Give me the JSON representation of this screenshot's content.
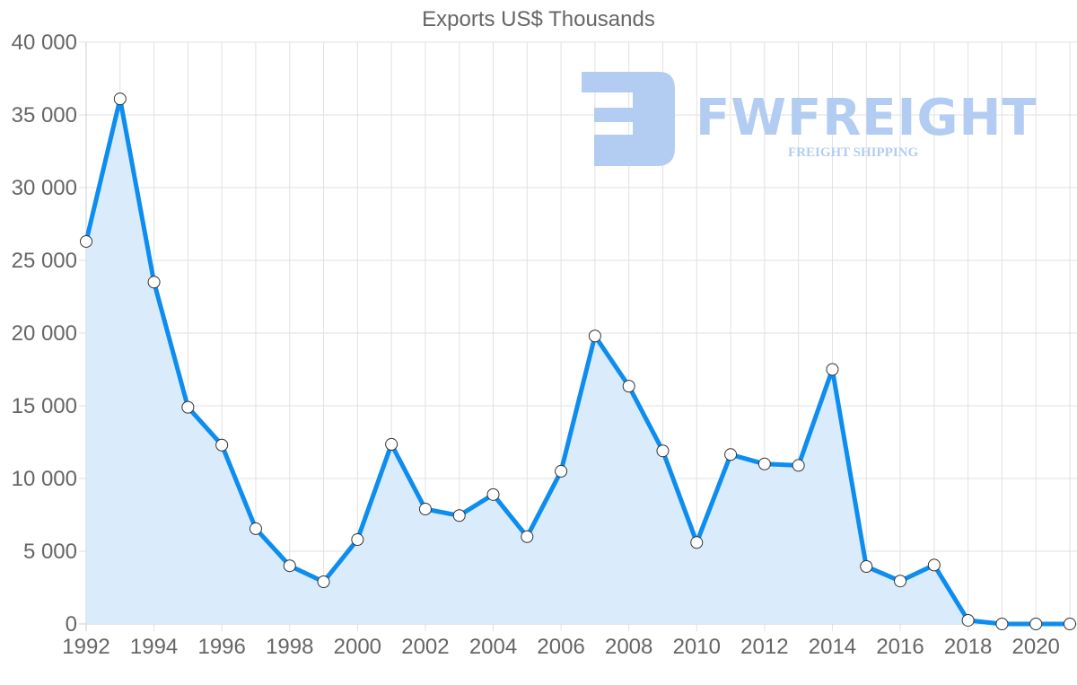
{
  "chart_data": {
    "type": "area",
    "title": "Exports US$ Thousands",
    "xlabel": "",
    "ylabel": "",
    "x": [
      1992,
      1993,
      1994,
      1995,
      1996,
      1997,
      1998,
      1999,
      2000,
      2001,
      2002,
      2003,
      2004,
      2005,
      2006,
      2007,
      2008,
      2009,
      2010,
      2011,
      2012,
      2013,
      2014,
      2015,
      2016,
      2017,
      2018,
      2019,
      2020,
      2021
    ],
    "series": [
      {
        "name": "Exports US$ Thousands",
        "values": [
          26300,
          36100,
          23500,
          14900,
          12300,
          6550,
          4000,
          2900,
          5800,
          12350,
          7900,
          7450,
          8900,
          6000,
          10500,
          19800,
          16350,
          11900,
          5600,
          11650,
          11000,
          10900,
          17500,
          3950,
          2950,
          4050,
          250,
          0,
          0,
          0
        ],
        "color": "#0d8df0",
        "fill": "#d8ebfc"
      }
    ],
    "ylim": [
      0,
      40000
    ],
    "yticks": [
      "0",
      "5 000",
      "10 000",
      "15 000",
      "20 000",
      "25 000",
      "30 000",
      "35 000",
      "40 000"
    ],
    "xticks": [
      "1992",
      "1994",
      "1996",
      "1998",
      "2000",
      "2002",
      "2004",
      "2006",
      "2008",
      "2010",
      "2012",
      "2014",
      "2016",
      "2018",
      "2020"
    ],
    "grid": true,
    "legend": "none"
  },
  "watermark": {
    "brand": "FWFREIGHT",
    "tagline": "FREIGHT SHIPPING",
    "color": "#b3cdf2"
  }
}
